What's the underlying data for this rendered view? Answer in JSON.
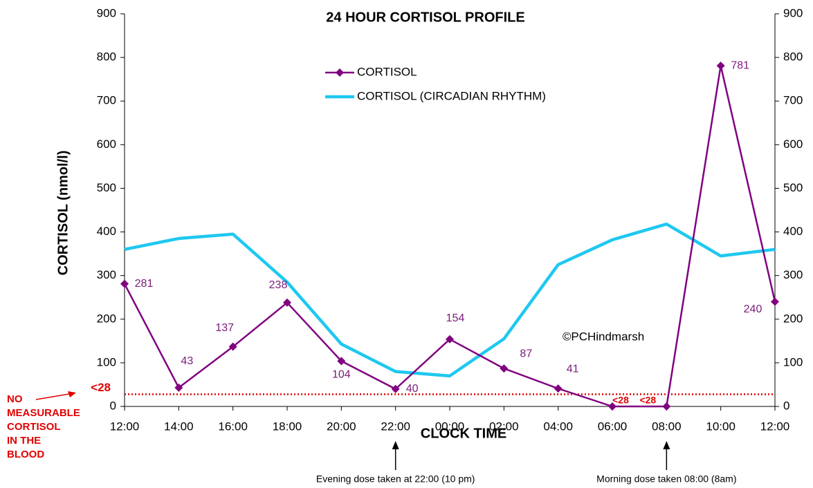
{
  "chart_data": {
    "type": "line",
    "title": "24 HOUR CORTISOL PROFILE",
    "x_label": "CLOCK TIME",
    "y_label": "CORTISOL (nmol/l)",
    "categories": [
      "12:00",
      "14:00",
      "16:00",
      "18:00",
      "20:00",
      "22:00",
      "00:00",
      "02:00",
      "04:00",
      "06:00",
      "08:00",
      "10:00",
      "12:00"
    ],
    "series": [
      {
        "name": "CORTISOL",
        "color": "#800080",
        "marker": "diamond",
        "values": [
          281,
          43,
          137,
          238,
          104,
          40,
          154,
          87,
          41,
          0,
          0,
          781,
          240
        ],
        "value_labels": [
          "281",
          "43",
          "137",
          "238",
          "104",
          "40",
          "154",
          "87",
          "41",
          null,
          null,
          "781",
          "240"
        ]
      },
      {
        "name": "CORTISOL (CIRCADIAN RHYTHM)",
        "color": "#1ec8f0",
        "values": [
          360,
          385,
          395,
          285,
          143,
          80,
          70,
          155,
          325,
          382,
          418,
          345,
          360
        ]
      }
    ],
    "ylim": [
      0,
      900
    ],
    "yticks": [
      0,
      100,
      200,
      300,
      400,
      500,
      600,
      700,
      800,
      900
    ],
    "y2lim": [
      0,
      900
    ],
    "y2ticks": [
      0,
      100,
      200,
      300,
      400,
      500,
      600,
      700,
      800,
      900
    ],
    "threshold": {
      "value": 28,
      "label": "<28",
      "color": "#e00000"
    },
    "point_notes": [
      {
        "index": 9,
        "text": "<28"
      },
      {
        "index": 10,
        "text": "<28"
      }
    ],
    "side_note": [
      "NO",
      "MEASURABLE",
      "CORTISOL",
      "IN THE",
      "BLOOD"
    ],
    "dose_notes": [
      {
        "index": 5,
        "text": "Evening dose taken at 22:00 (10 pm)"
      },
      {
        "index": 10,
        "text": "Morning dose taken 08:00 (8am)"
      }
    ],
    "copyright": "©PCHindmarsh",
    "legend": "top"
  }
}
